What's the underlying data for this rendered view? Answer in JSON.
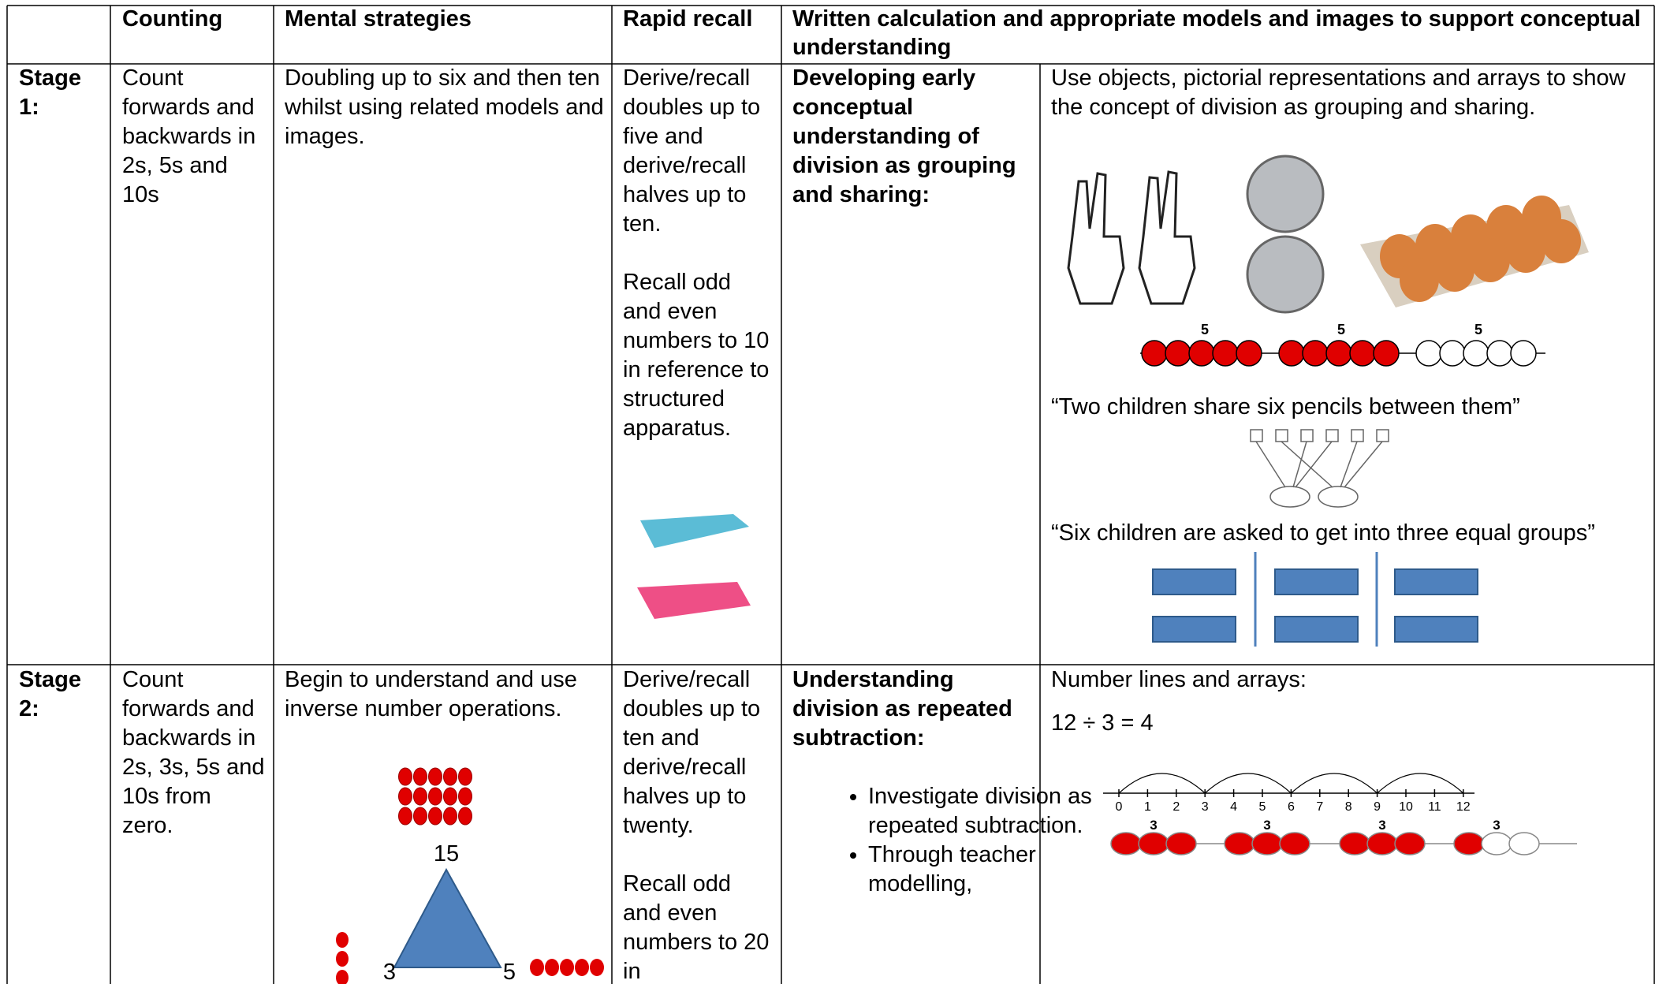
{
  "table": {
    "header": [
      "Counting",
      "Mental strategies",
      "Rapid recall",
      "Written calculation and appropriate models and images to support conceptual understanding"
    ],
    "rows": [
      {
        "stage": "Stage 1:",
        "counting": "Count forwards and backwards in 2s, 5s and 10s",
        "mental": "Doubling up to six and then ten whilst using related models and images.",
        "recall": [
          "Derive/recall doubles up to five and derive/recall halves up to ten.",
          "Recall odd and even numbers to 10 in reference to structured apparatus."
        ],
        "focus": "Developing early conceptual understanding of division as grouping and sharing:",
        "models": {
          "intro": "Use objects, pictorial representations and arrays to show the concept of division as grouping and sharing.",
          "bead_labels": [
            5,
            5,
            5
          ],
          "quote_1": "“Two children share six pencils between them”",
          "quote_2": "“Six children are asked to get into three equal groups”"
        }
      },
      {
        "stage": "Stage 2:",
        "counting": "Count forwards and backwards in 2s, 3s, 5s and 10s from zero.",
        "mental": "Begin to understand and use inverse number operations.",
        "triangle": {
          "top": 15,
          "left": 3,
          "right": 5
        },
        "recall": [
          "Derive/recall doubles up to ten and derive/recall halves up to twenty.",
          "Recall odd and even numbers to 20 in"
        ],
        "focus": "Understanding division as repeated subtraction:",
        "bullets": [
          "Investigate division as repeated subtraction.",
          "Through teacher modelling,"
        ],
        "models": {
          "intro": "Number lines and arrays:",
          "equation": "12 ÷ 3 = 4",
          "number_line": [
            0,
            1,
            2,
            3,
            4,
            5,
            6,
            7,
            8,
            9,
            10,
            11,
            12
          ],
          "bead_labels": [
            3,
            3,
            3,
            3
          ]
        }
      }
    ]
  }
}
